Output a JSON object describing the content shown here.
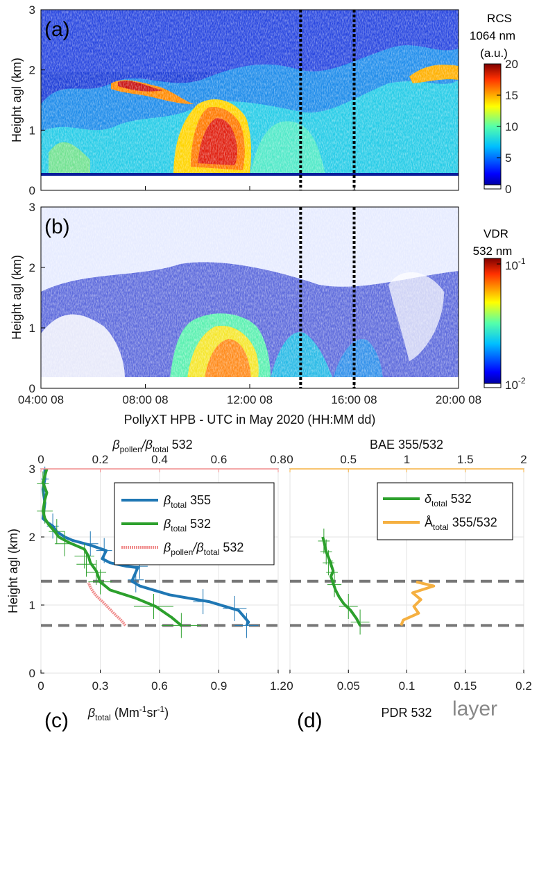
{
  "top": {
    "xlabel": "PollyXT HPB - UTC in May 2020 (HH:MM dd)",
    "xticks": [
      {
        "t": 4,
        "label": "04:00 08"
      },
      {
        "t": 8,
        "label": "08:00 08"
      },
      {
        "t": 12,
        "label": "12:00 08"
      },
      {
        "t": 16,
        "label": "16:00 08"
      },
      {
        "t": 20,
        "label": "20:00 08"
      }
    ],
    "xlim": [
      4,
      20
    ],
    "dotted_lines_time": [
      13.95,
      16.0
    ]
  },
  "chart_data": [
    {
      "type": "heatmap",
      "panel": "(a)",
      "quantity": "RCS",
      "ylabel": "Height agl (km)",
      "ylim": [
        0,
        3
      ],
      "yticks": [
        "0",
        "1",
        "2",
        "3"
      ],
      "colorbar": {
        "title": [
          "RCS",
          "1064 nm",
          "(a.u.)"
        ],
        "range": [
          0,
          20
        ],
        "ticks": [
          "0",
          "5",
          "10",
          "15",
          "20"
        ],
        "colormap": "jet"
      }
    },
    {
      "type": "heatmap",
      "panel": "(b)",
      "quantity": "VDR",
      "ylabel": "Height agl (km)",
      "ylim": [
        0,
        3
      ],
      "yticks": [
        "0",
        "1",
        "2",
        "3"
      ],
      "colorbar": {
        "title": [
          "VDR",
          "532 nm"
        ],
        "scale": "log",
        "range": [
          0.01,
          0.1
        ],
        "ticks": [
          "10",
          "10"
        ],
        "tick_exponents": [
          "-2",
          "-1"
        ],
        "colormap": "jet"
      }
    },
    {
      "type": "line",
      "panel": "(c)",
      "ylabel": "Height agl (km)",
      "xlabel_main": "β",
      "xlabel_sub": "total",
      "xlabel_unit1": " (Mm",
      "xlabel_exp1": "-1",
      "xlabel_unit2": "sr",
      "xlabel_exp2": "-1",
      "xlabel_end": ")",
      "xlim": [
        0,
        1.2
      ],
      "xticks": [
        "0",
        "0.3",
        "0.6",
        "0.9",
        "1.2"
      ],
      "ylim": [
        0,
        3
      ],
      "yticks": [
        "0",
        "1",
        "2",
        "3"
      ],
      "top_axis": {
        "main": "β",
        "sub1": "pollen",
        "slash": "/β",
        "sub2": "total",
        "tail": " 532",
        "xlim": [
          0,
          0.8
        ],
        "xticks": [
          "0",
          "0.2",
          "0.4",
          "0.6",
          "0.8"
        ],
        "color": "#f08c8c"
      },
      "hlines": [
        0.7,
        1.35
      ],
      "legend": {
        "position": "top-right",
        "entries": [
          {
            "main": "β",
            "sub": "total",
            "tail": " 355",
            "color": "#1f77b4"
          },
          {
            "main": "β",
            "sub": "total",
            "tail": " 532",
            "color": "#2ca02c"
          },
          {
            "main": "β",
            "sub": "pollen",
            "mid": "/β",
            "sub2": "total",
            "tail": " 532",
            "color": "#f08c8c"
          }
        ]
      },
      "series": [
        {
          "color": "#1f77b4",
          "axis": "bottom",
          "points": [
            [
              1.04,
              0.7
            ],
            [
              1.05,
              0.75
            ],
            [
              1.0,
              0.92
            ],
            [
              0.85,
              1.05
            ],
            [
              0.65,
              1.15
            ],
            [
              0.5,
              1.28
            ],
            [
              0.46,
              1.35
            ],
            [
              0.49,
              1.55
            ],
            [
              0.43,
              1.57
            ],
            [
              0.35,
              1.62
            ],
            [
              0.31,
              1.68
            ],
            [
              0.33,
              1.8
            ],
            [
              0.25,
              1.88
            ],
            [
              0.16,
              1.95
            ],
            [
              0.12,
              2.0
            ],
            [
              0.08,
              2.08
            ],
            [
              0.06,
              2.16
            ],
            [
              0.03,
              2.22
            ],
            [
              0.01,
              2.27
            ],
            [
              0.02,
              2.5
            ],
            [
              0.01,
              2.7
            ],
            [
              0.02,
              2.85
            ],
            [
              0.02,
              3.0
            ]
          ],
          "errorbars": [
            [
              1.04,
              0.7,
              0.06
            ],
            [
              0.98,
              0.95,
              0.06
            ],
            [
              0.82,
              1.05,
              0.05
            ],
            [
              0.48,
              1.37,
              0.04
            ],
            [
              0.5,
              1.57,
              0.04
            ],
            [
              0.32,
              1.8,
              0.04
            ],
            [
              0.25,
              1.9,
              0.04
            ],
            [
              0.06,
              2.16,
              0.03
            ],
            [
              0.02,
              2.85,
              0.02
            ]
          ]
        },
        {
          "color": "#2ca02c",
          "axis": "bottom",
          "points": [
            [
              0.71,
              0.7
            ],
            [
              0.66,
              0.82
            ],
            [
              0.58,
              0.98
            ],
            [
              0.48,
              1.1
            ],
            [
              0.35,
              1.22
            ],
            [
              0.3,
              1.34
            ],
            [
              0.28,
              1.5
            ],
            [
              0.25,
              1.62
            ],
            [
              0.24,
              1.72
            ],
            [
              0.22,
              1.82
            ],
            [
              0.14,
              1.92
            ],
            [
              0.09,
              2.0
            ],
            [
              0.07,
              2.08
            ],
            [
              0.04,
              2.18
            ],
            [
              0.02,
              2.27
            ],
            [
              0.01,
              2.38
            ],
            [
              0.02,
              2.55
            ],
            [
              0.03,
              2.65
            ],
            [
              0.01,
              2.8
            ],
            [
              0.02,
              2.9
            ],
            [
              0.03,
              3.0
            ]
          ],
          "errorbars": [
            [
              0.71,
              0.7,
              0.1
            ],
            [
              0.57,
              0.98,
              0.1
            ],
            [
              0.3,
              1.34,
              0.06
            ],
            [
              0.28,
              1.48,
              0.05
            ],
            [
              0.23,
              1.6,
              0.05
            ],
            [
              0.22,
              1.72,
              0.05
            ],
            [
              0.12,
              1.9,
              0.05
            ],
            [
              0.08,
              2.08,
              0.04
            ],
            [
              0.02,
              2.38,
              0.04
            ],
            [
              0.01,
              2.78,
              0.03
            ]
          ]
        },
        {
          "color": "#f08c8c",
          "axis": "top",
          "points": [
            [
              0.285,
              0.7
            ],
            [
              0.27,
              0.78
            ],
            [
              0.25,
              0.86
            ],
            [
              0.23,
              0.95
            ],
            [
              0.21,
              1.04
            ],
            [
              0.19,
              1.12
            ],
            [
              0.175,
              1.2
            ],
            [
              0.165,
              1.28
            ],
            [
              0.16,
              1.33
            ]
          ],
          "dotted": true
        }
      ],
      "label": "(c)"
    },
    {
      "type": "line",
      "panel": "(d)",
      "xlabel": "PDR 532",
      "xlim": [
        0,
        0.2
      ],
      "xticks": [
        "0",
        "0.05",
        "0.1",
        "0.15",
        "0.2"
      ],
      "ylim": [
        0,
        3
      ],
      "top_axis": {
        "label": "BAE 355/532",
        "xlim": [
          0,
          2
        ],
        "xticks": [
          "0",
          "0.5",
          "1",
          "1.5",
          "2"
        ],
        "color": "#f5b041"
      },
      "hlines": [
        0.7,
        1.35
      ],
      "annotation": "layer",
      "legend": {
        "position": "top-right",
        "entries": [
          {
            "main": "δ",
            "sub": "total",
            "tail": " 532",
            "color": "#2ca02c"
          },
          {
            "main": "Å",
            "sub": "total",
            "tail": " 355/532",
            "color": "#f5b041"
          }
        ]
      },
      "series": [
        {
          "color": "#2ca02c",
          "axis": "bottom",
          "points": [
            [
              0.06,
              0.7
            ],
            [
              0.057,
              0.8
            ],
            [
              0.052,
              0.92
            ],
            [
              0.046,
              1.02
            ],
            [
              0.042,
              1.12
            ],
            [
              0.039,
              1.22
            ],
            [
              0.037,
              1.32
            ],
            [
              0.035,
              1.42
            ],
            [
              0.037,
              1.5
            ],
            [
              0.035,
              1.6
            ],
            [
              0.033,
              1.7
            ],
            [
              0.031,
              1.78
            ],
            [
              0.03,
              1.86
            ],
            [
              0.029,
              1.94
            ],
            [
              0.028,
              2.0
            ]
          ],
          "errorbars": [
            [
              0.06,
              0.75,
              0.008
            ],
            [
              0.05,
              0.98,
              0.008
            ],
            [
              0.038,
              1.3,
              0.006
            ],
            [
              0.036,
              1.48,
              0.005
            ],
            [
              0.033,
              1.62,
              0.005
            ],
            [
              0.031,
              1.78,
              0.005
            ],
            [
              0.029,
              1.94,
              0.005
            ]
          ]
        },
        {
          "color": "#f5b041",
          "axis": "top",
          "points": [
            [
              0.95,
              0.7
            ],
            [
              0.97,
              0.78
            ],
            [
              1.1,
              0.88
            ],
            [
              1.06,
              0.98
            ],
            [
              1.12,
              1.08
            ],
            [
              1.05,
              1.18
            ],
            [
              1.23,
              1.28
            ],
            [
              1.08,
              1.34
            ]
          ]
        }
      ],
      "label": "(d)"
    }
  ]
}
